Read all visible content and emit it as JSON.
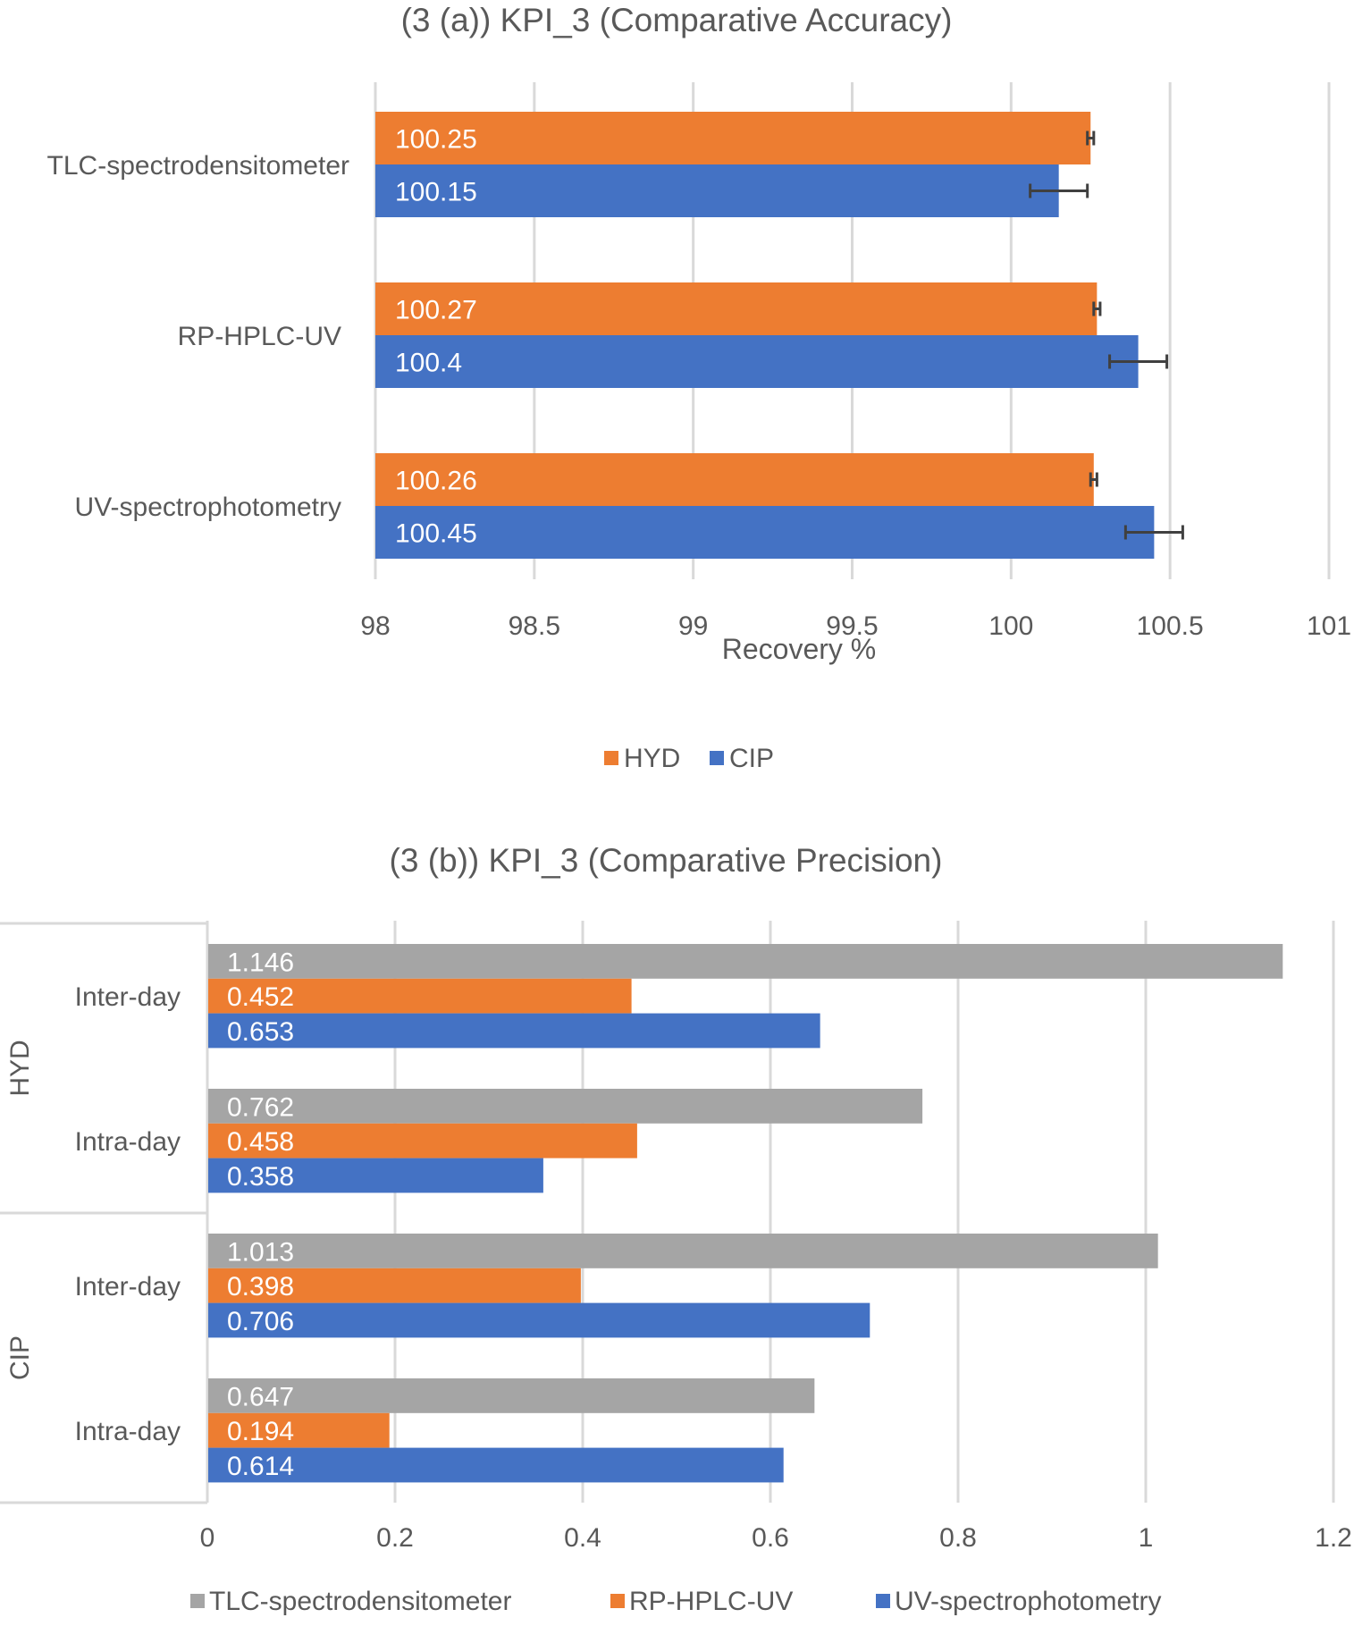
{
  "colors": {
    "HYD": "#ED7D31",
    "CIP": "#4472C4",
    "TLC": "#A5A5A5",
    "grid": "#D9D9D9",
    "text": "#595959"
  },
  "chart_data": [
    {
      "type": "bar",
      "orientation": "horizontal",
      "title": "(3 (a)) KPI_3 (Comparative Accuracy)",
      "xlabel": "Recovery %",
      "xlim": [
        98,
        101
      ],
      "ticks": [
        "98",
        "98.5",
        "99",
        "99.5",
        "100",
        "100.5",
        "101"
      ],
      "grid": true,
      "legend": "bottom",
      "categories": [
        "TLC-spectrodensitometer",
        "RP-HPLC-UV",
        "UV-spectrophotometry"
      ],
      "series": [
        {
          "name": "HYD",
          "values": [
            100.25,
            100.27,
            100.26
          ],
          "error": [
            0.01,
            0.01,
            0.01
          ]
        },
        {
          "name": "CIP",
          "values": [
            100.15,
            100.4,
            100.45
          ],
          "error": [
            0.09,
            0.09,
            0.09
          ]
        }
      ]
    },
    {
      "type": "bar",
      "orientation": "horizontal",
      "title": "(3 (b)) KPI_3 (Comparative Precision)",
      "xlim": [
        0,
        1.2
      ],
      "ticks": [
        "0",
        "0.2",
        "0.4",
        "0.6",
        "0.8",
        "1",
        "1.2"
      ],
      "grid": true,
      "legend": "bottom",
      "groups": [
        {
          "label": "HYD",
          "categories": [
            "Inter-day",
            "Intra-day"
          ]
        },
        {
          "label": "CIP",
          "categories": [
            "Inter-day",
            "Intra-day"
          ]
        }
      ],
      "series": [
        {
          "name": "TLC-spectrodensitometer",
          "values": [
            1.146,
            0.762,
            1.013,
            0.647
          ]
        },
        {
          "name": "RP-HPLC-UV",
          "values": [
            0.452,
            0.458,
            0.398,
            0.194
          ]
        },
        {
          "name": "UV-spectrophotometry",
          "values": [
            0.653,
            0.358,
            0.706,
            0.614
          ]
        }
      ]
    }
  ]
}
